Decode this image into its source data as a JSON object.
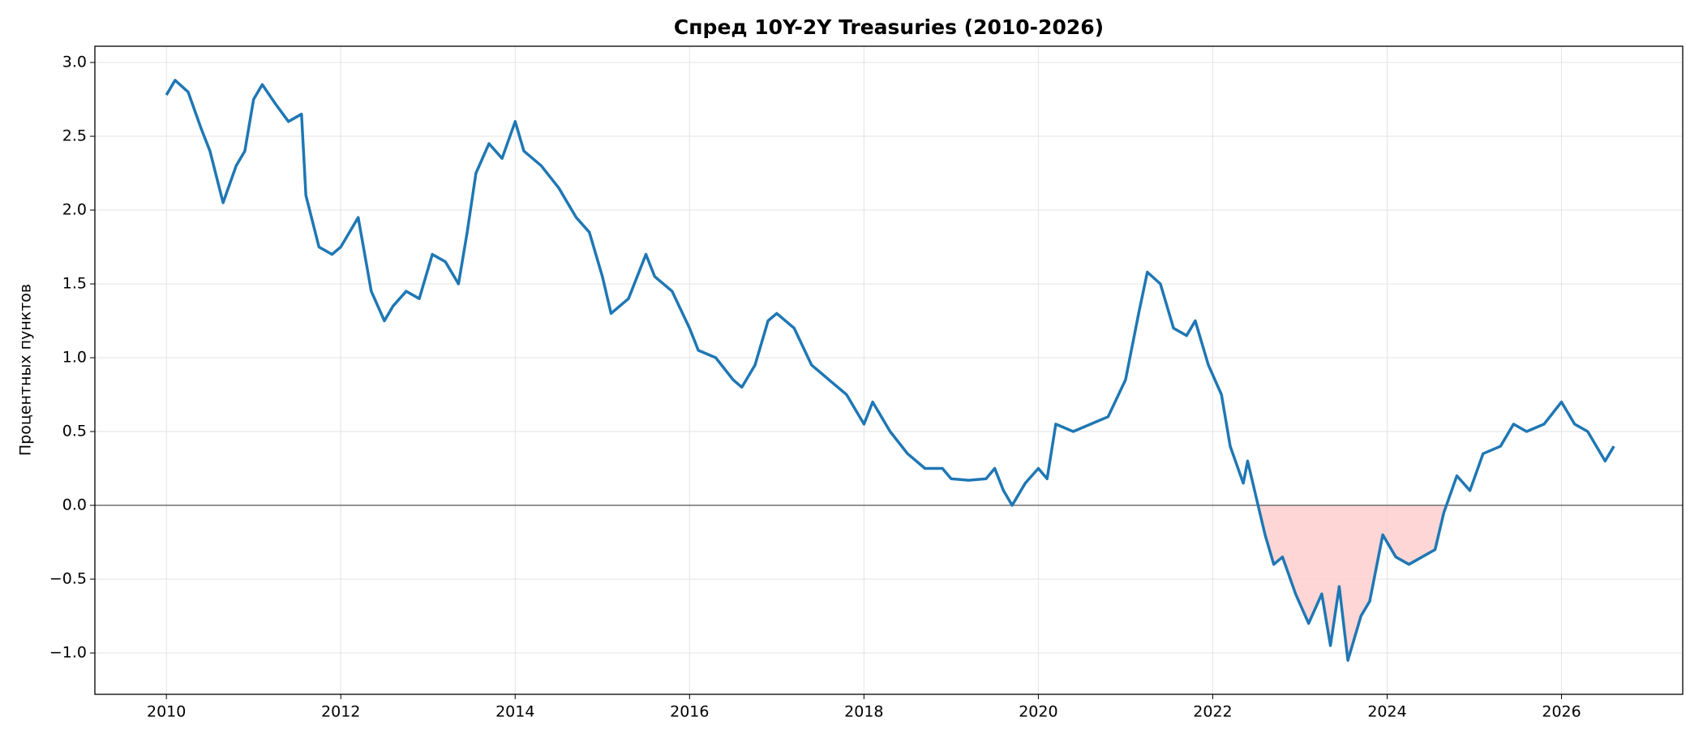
{
  "chart_data": {
    "type": "line",
    "title": "Спред 10Y-2Y Treasuries (2010-2026)",
    "ylabel": "Процентных пунктов",
    "xlim": [
      2009.18,
      2027.39
    ],
    "ylim": [
      -1.28,
      3.11
    ],
    "xticks": [
      2010,
      2012,
      2014,
      2016,
      2018,
      2020,
      2022,
      2024,
      2026
    ],
    "yticks": [
      {
        "value": -1.0,
        "label": "−1.0"
      },
      {
        "value": -0.5,
        "label": "−0.5"
      },
      {
        "value": 0,
        "label": "0.0"
      },
      {
        "value": 0.5,
        "label": "0.5"
      },
      {
        "value": 1.0,
        "label": "1.0"
      },
      {
        "value": 1.5,
        "label": "1.5"
      },
      {
        "value": 2.0,
        "label": "2.0"
      },
      {
        "value": 2.5,
        "label": "2.5"
      },
      {
        "value": 3.0,
        "label": "3.0"
      }
    ],
    "grid": true,
    "hline": 0,
    "negative_fill": "#ffcccc",
    "x": [
      2010.0,
      2010.1,
      2010.25,
      2010.4,
      2010.5,
      2010.65,
      2010.8,
      2010.9,
      2011.0,
      2011.1,
      2011.25,
      2011.4,
      2011.55,
      2011.6,
      2011.75,
      2011.9,
      2012.0,
      2012.2,
      2012.35,
      2012.5,
      2012.6,
      2012.75,
      2012.9,
      2013.05,
      2013.2,
      2013.35,
      2013.45,
      2013.55,
      2013.7,
      2013.85,
      2014.0,
      2014.1,
      2014.3,
      2014.5,
      2014.7,
      2014.85,
      2015.0,
      2015.1,
      2015.3,
      2015.5,
      2015.6,
      2015.8,
      2016.0,
      2016.1,
      2016.3,
      2016.5,
      2016.6,
      2016.75,
      2016.9,
      2017.0,
      2017.2,
      2017.4,
      2017.6,
      2017.8,
      2018.0,
      2018.1,
      2018.3,
      2018.5,
      2018.7,
      2018.9,
      2019.0,
      2019.2,
      2019.4,
      2019.5,
      2019.6,
      2019.7,
      2019.85,
      2020.0,
      2020.1,
      2020.2,
      2020.4,
      2020.6,
      2020.8,
      2021.0,
      2021.15,
      2021.25,
      2021.4,
      2021.55,
      2021.7,
      2021.8,
      2021.95,
      2022.1,
      2022.2,
      2022.35,
      2022.4,
      2022.5,
      2022.6,
      2022.7,
      2022.8,
      2022.95,
      2023.1,
      2023.25,
      2023.35,
      2023.45,
      2023.55,
      2023.7,
      2023.8,
      2023.95,
      2024.1,
      2024.25,
      2024.4,
      2024.55,
      2024.65,
      2024.8,
      2024.95,
      2025.1,
      2025.3,
      2025.45,
      2025.6,
      2025.8,
      2026.0,
      2026.15,
      2026.3,
      2026.5,
      2026.6
    ],
    "series": [
      {
        "name": "10Y-2Y",
        "color": "#1f77b4",
        "values": [
          2.78,
          2.88,
          2.8,
          2.55,
          2.4,
          2.05,
          2.3,
          2.4,
          2.75,
          2.85,
          2.72,
          2.6,
          2.65,
          2.1,
          1.75,
          1.7,
          1.75,
          1.95,
          1.45,
          1.25,
          1.35,
          1.45,
          1.4,
          1.7,
          1.65,
          1.5,
          1.85,
          2.25,
          2.45,
          2.35,
          2.6,
          2.4,
          2.3,
          2.15,
          1.95,
          1.85,
          1.55,
          1.3,
          1.4,
          1.7,
          1.55,
          1.45,
          1.2,
          1.05,
          1.0,
          0.85,
          0.8,
          0.95,
          1.25,
          1.3,
          1.2,
          0.95,
          0.85,
          0.75,
          0.55,
          0.7,
          0.5,
          0.35,
          0.25,
          0.25,
          0.18,
          0.17,
          0.18,
          0.25,
          0.1,
          0.0,
          0.15,
          0.25,
          0.18,
          0.55,
          0.5,
          0.55,
          0.6,
          0.85,
          1.3,
          1.58,
          1.5,
          1.2,
          1.15,
          1.25,
          0.95,
          0.75,
          0.4,
          0.15,
          0.3,
          0.05,
          -0.2,
          -0.4,
          -0.35,
          -0.6,
          -0.8,
          -0.6,
          -0.95,
          -0.55,
          -1.05,
          -0.75,
          -0.65,
          -0.2,
          -0.35,
          -0.4,
          -0.35,
          -0.3,
          -0.05,
          0.2,
          0.1,
          0.35,
          0.4,
          0.55,
          0.5,
          0.55,
          0.7,
          0.55,
          0.5,
          0.3,
          0.4
        ]
      }
    ]
  }
}
